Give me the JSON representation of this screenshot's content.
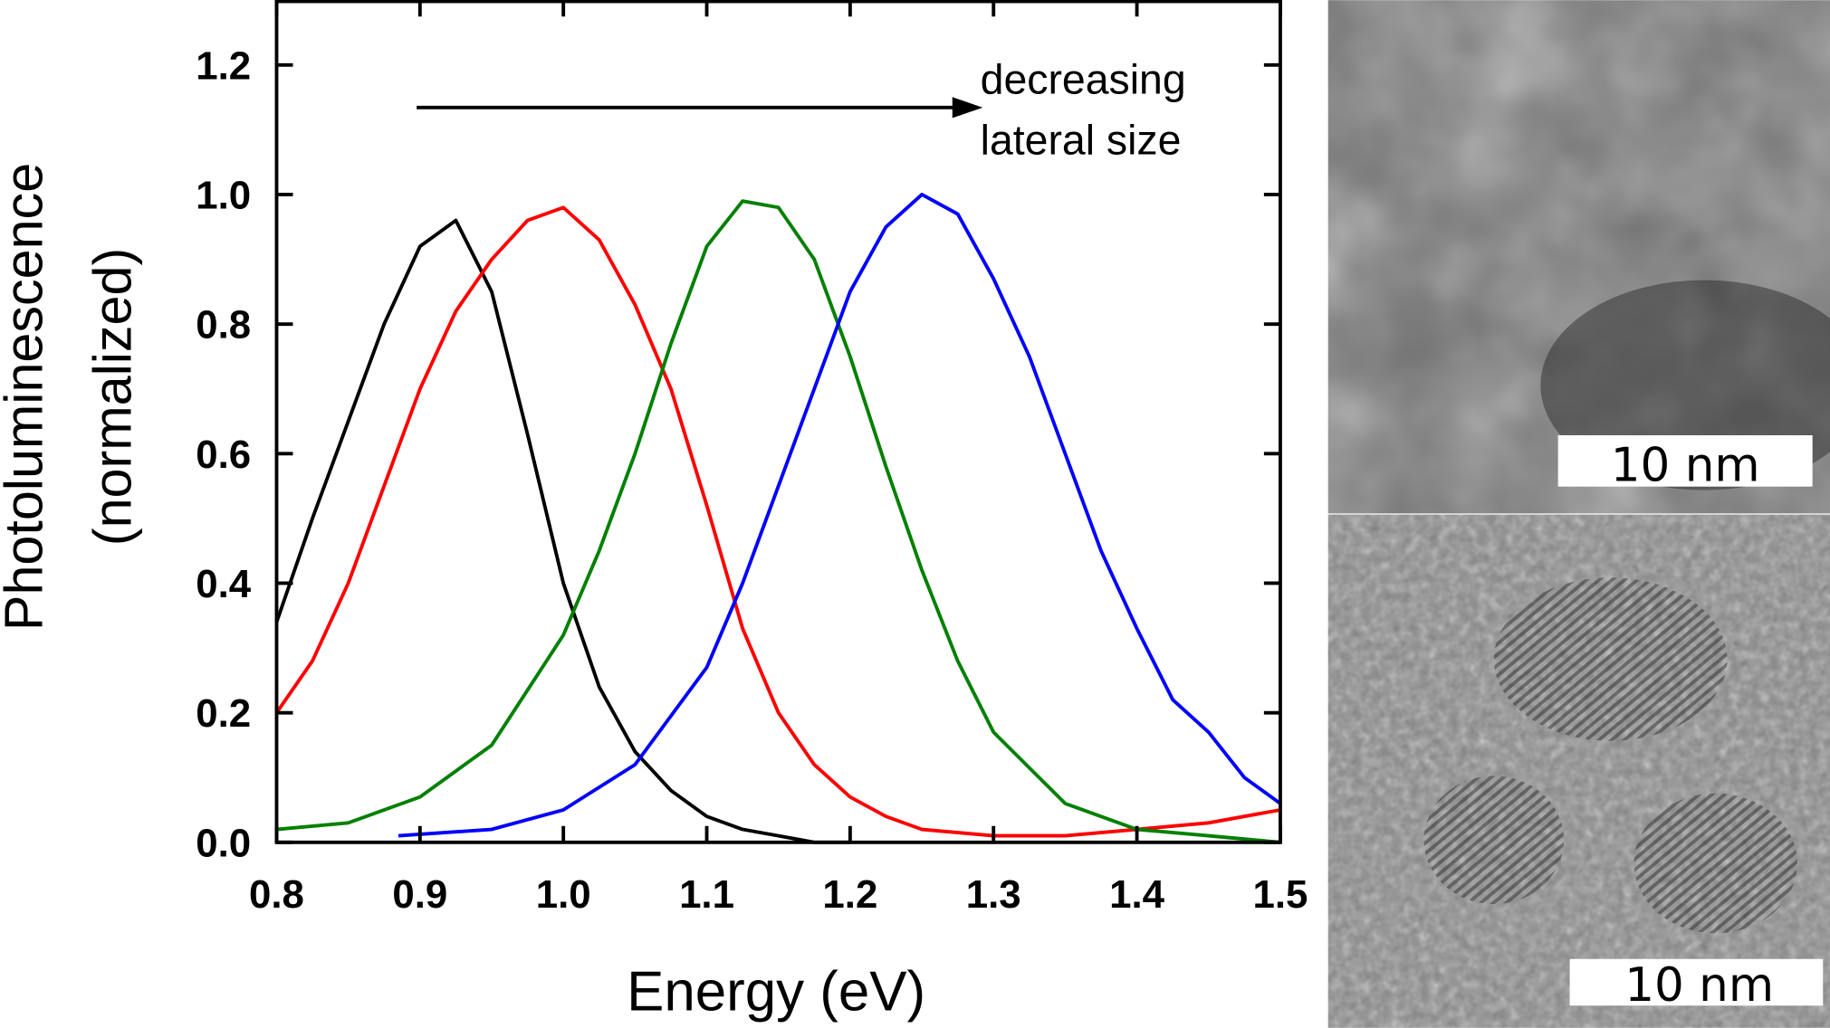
{
  "chart_data": {
    "type": "line",
    "xlabel": "Energy (eV)",
    "ylabel": [
      "Photoluminescence",
      "(normalized)"
    ],
    "annotation": [
      "decreasing",
      "lateral size"
    ],
    "xlim": [
      0.8,
      1.5
    ],
    "ylim": [
      0,
      1.3
    ],
    "xticks": [
      0.8,
      0.9,
      {
        "value": 1,
        "label": "1.0"
      },
      1.1,
      1.2,
      1.3,
      1.4,
      1.5
    ],
    "yticks": [
      {
        "value": 0,
        "label": "0.0"
      },
      0.2,
      0.4,
      0.6,
      0.8,
      {
        "value": 1,
        "label": "1.0"
      },
      1.2
    ],
    "series": [
      {
        "name": "black",
        "color": "#000000",
        "x": [
          0.8,
          0.825,
          0.85,
          0.875,
          0.9,
          0.925,
          0.95,
          0.975,
          1.0,
          1.025,
          1.05,
          1.075,
          1.1,
          1.125,
          1.15,
          1.175,
          1.2
        ],
        "values": [
          0.34,
          0.5,
          0.65,
          0.8,
          0.92,
          0.96,
          0.85,
          0.63,
          0.4,
          0.24,
          0.14,
          0.08,
          0.04,
          0.02,
          0.01,
          0.0,
          0.0
        ]
      },
      {
        "name": "red",
        "color": "#ff0000",
        "x": [
          0.8,
          0.825,
          0.85,
          0.875,
          0.9,
          0.925,
          0.95,
          0.975,
          1.0,
          1.025,
          1.05,
          1.075,
          1.1,
          1.125,
          1.15,
          1.175,
          1.2,
          1.225,
          1.25,
          1.3,
          1.35,
          1.4,
          1.45,
          1.5
        ],
        "values": [
          0.2,
          0.28,
          0.4,
          0.55,
          0.7,
          0.82,
          0.9,
          0.96,
          0.98,
          0.93,
          0.83,
          0.7,
          0.52,
          0.33,
          0.2,
          0.12,
          0.07,
          0.04,
          0.02,
          0.01,
          0.01,
          0.02,
          0.03,
          0.05
        ]
      },
      {
        "name": "green",
        "color": "#008000",
        "x": [
          0.8,
          0.85,
          0.9,
          0.95,
          1.0,
          1.025,
          1.05,
          1.075,
          1.1,
          1.125,
          1.15,
          1.175,
          1.2,
          1.225,
          1.25,
          1.275,
          1.3,
          1.35,
          1.4,
          1.45,
          1.5
        ],
        "values": [
          0.02,
          0.03,
          0.07,
          0.15,
          0.32,
          0.45,
          0.6,
          0.77,
          0.92,
          0.99,
          0.98,
          0.9,
          0.75,
          0.58,
          0.42,
          0.28,
          0.17,
          0.06,
          0.02,
          0.01,
          0.0
        ]
      },
      {
        "name": "blue",
        "color": "#0000ff",
        "x": [
          0.885,
          0.95,
          1.0,
          1.05,
          1.1,
          1.125,
          1.15,
          1.175,
          1.2,
          1.225,
          1.25,
          1.275,
          1.3,
          1.325,
          1.35,
          1.375,
          1.4,
          1.425,
          1.45,
          1.475,
          1.5
        ],
        "values": [
          0.01,
          0.02,
          0.05,
          0.12,
          0.27,
          0.4,
          0.55,
          0.7,
          0.85,
          0.95,
          1.0,
          0.97,
          0.87,
          0.75,
          0.6,
          0.45,
          0.33,
          0.22,
          0.17,
          0.1,
          0.06
        ]
      }
    ]
  },
  "micrographs": [
    {
      "scale_bar": "10 nm"
    },
    {
      "scale_bar": "10 nm"
    }
  ]
}
